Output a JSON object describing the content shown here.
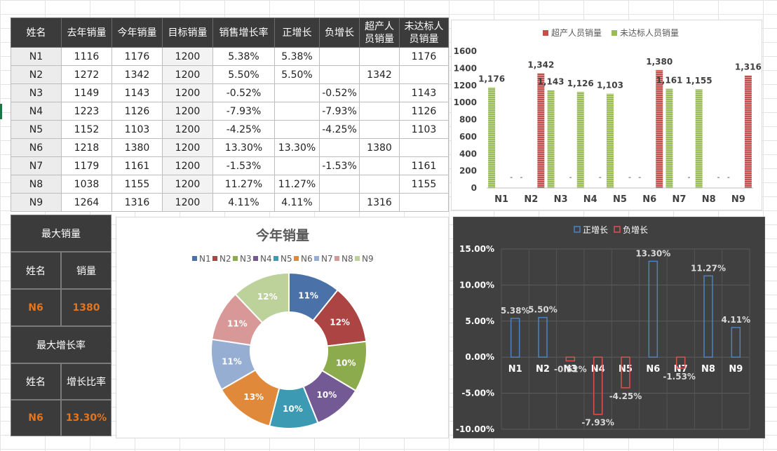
{
  "table": {
    "headers": [
      "姓名",
      "去年销量",
      "今年销量",
      "目标销量",
      "销售增长率",
      "正增长",
      "负增长",
      "超产人\n员销量",
      "未达标人\n员销量"
    ],
    "rows": [
      [
        "N1",
        "1116",
        "1176",
        "1200",
        "5.38%",
        "5.38%",
        "",
        "",
        "1176"
      ],
      [
        "N2",
        "1272",
        "1342",
        "1200",
        "5.50%",
        "5.50%",
        "",
        "1342",
        ""
      ],
      [
        "N3",
        "1149",
        "1143",
        "1200",
        "-0.52%",
        "",
        "-0.52%",
        "",
        "1143"
      ],
      [
        "N4",
        "1223",
        "1126",
        "1200",
        "-7.93%",
        "",
        "-7.93%",
        "",
        "1126"
      ],
      [
        "N5",
        "1152",
        "1103",
        "1200",
        "-4.25%",
        "",
        "-4.25%",
        "",
        "1103"
      ],
      [
        "N6",
        "1218",
        "1380",
        "1200",
        "13.30%",
        "13.30%",
        "",
        "1380",
        ""
      ],
      [
        "N7",
        "1179",
        "1161",
        "1200",
        "-1.53%",
        "",
        "-1.53%",
        "",
        "1161"
      ],
      [
        "N8",
        "1038",
        "1155",
        "1200",
        "11.27%",
        "11.27%",
        "",
        "",
        "1155"
      ],
      [
        "N9",
        "1264",
        "1316",
        "1200",
        "4.11%",
        "4.11%",
        "",
        "1316",
        ""
      ]
    ]
  },
  "summary": {
    "max_sales_title": "最大销量",
    "name_label": "姓名",
    "sales_label": "销量",
    "max_sales_name": "N6",
    "max_sales_value": "1380",
    "max_growth_title": "最大增长率",
    "growth_name_label": "姓名",
    "growth_ratio_label": "增长比率",
    "max_growth_name": "N6",
    "max_growth_value": "13.30%"
  },
  "chart_data": [
    {
      "type": "bar",
      "categories": [
        "N1",
        "N2",
        "N3",
        "N4",
        "N5",
        "N6",
        "N7",
        "N8",
        "N9"
      ],
      "series": [
        {
          "name": "超产人员销量",
          "color": "#c0504d",
          "values": [
            null,
            1342,
            null,
            null,
            null,
            1380,
            null,
            null,
            1316
          ]
        },
        {
          "name": "未达标人员销量",
          "color": "#9bbb59",
          "values": [
            1176,
            null,
            1143,
            1126,
            1103,
            null,
            1161,
            1155,
            null
          ]
        }
      ],
      "data_labels": [
        "1,176",
        "1,342",
        "1,143",
        "1,126",
        "1,103",
        "1,380",
        "1,161",
        "1,155",
        "1,316"
      ],
      "empty_label": "-",
      "ylim": [
        0,
        1600
      ],
      "yticks": [
        "0",
        "200",
        "400",
        "600",
        "800",
        "1000",
        "1200",
        "1400",
        "1600"
      ],
      "legend": "top"
    },
    {
      "type": "pie",
      "title": "今年销量",
      "categories": [
        "N1",
        "N2",
        "N3",
        "N4",
        "N5",
        "N6",
        "N7",
        "N8",
        "N9"
      ],
      "values": [
        1176,
        1342,
        1143,
        1126,
        1103,
        1380,
        1161,
        1155,
        1316
      ],
      "labels": [
        "11%",
        "12%",
        "10%",
        "10%",
        "10%",
        "13%",
        "11%",
        "11%",
        "12%"
      ],
      "colors": [
        "#4a72a8",
        "#ab4442",
        "#8cab4c",
        "#735a94",
        "#3c9ab3",
        "#e0893a",
        "#97aed3",
        "#d79897",
        "#bcd29a"
      ],
      "legend": "top"
    },
    {
      "type": "bar",
      "categories": [
        "N1",
        "N2",
        "N3",
        "N4",
        "N5",
        "N6",
        "N7",
        "N8",
        "N9"
      ],
      "series": [
        {
          "name": "正增长",
          "color": "#4f81bd",
          "values": [
            5.38,
            5.5,
            null,
            null,
            null,
            13.3,
            null,
            11.27,
            4.11
          ]
        },
        {
          "name": "负增长",
          "color": "#d9534f",
          "values": [
            null,
            null,
            -0.52,
            -7.93,
            -4.25,
            null,
            -1.53,
            null,
            null
          ]
        }
      ],
      "data_labels": [
        "5.38%",
        "5.50%",
        "-0.52%",
        "-7.93%",
        "-4.25%",
        "13.30%",
        "-1.53%",
        "11.27%",
        "4.11%"
      ],
      "ylim": [
        -10,
        15
      ],
      "yticks": [
        "15.00%",
        "10.00%",
        "5.00%",
        "0.00%",
        "-5.00%",
        "-10.00%"
      ],
      "legend": "top"
    }
  ]
}
